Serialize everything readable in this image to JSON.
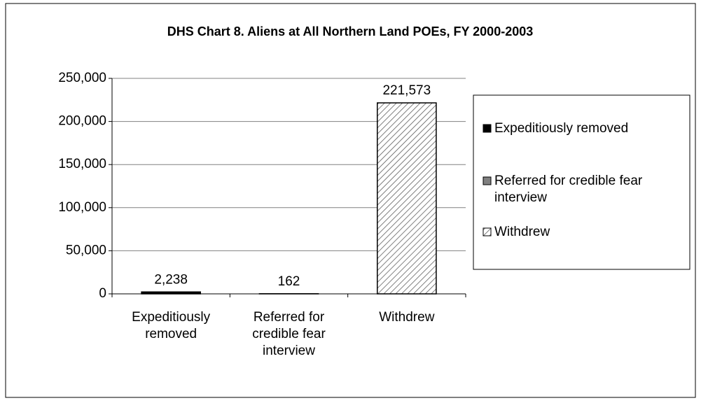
{
  "chart_data": {
    "type": "bar",
    "title": "DHS Chart 8. Aliens at All Northern Land POEs, FY 2000-2003",
    "categories": [
      "Expeditiously removed",
      "Referred for credible fear interview",
      "Withdrew"
    ],
    "values": [
      2238,
      162,
      221573
    ],
    "value_labels": [
      "2,238",
      "162",
      "221,573"
    ],
    "colors": [
      "#000000",
      "#808080",
      "#ffffff"
    ],
    "hatch": [
      false,
      false,
      true
    ],
    "ylim": [
      0,
      250000
    ],
    "yticks": [
      0,
      {
        "value": 50000,
        "label": "50,000"
      },
      {
        "value": 100000,
        "label": "100,000"
      },
      {
        "value": 150000,
        "label": "150,000"
      },
      {
        "value": 200000,
        "label": "200,000"
      },
      {
        "value": 250000,
        "label": "250,000"
      }
    ],
    "grid": true,
    "legend": "right"
  }
}
